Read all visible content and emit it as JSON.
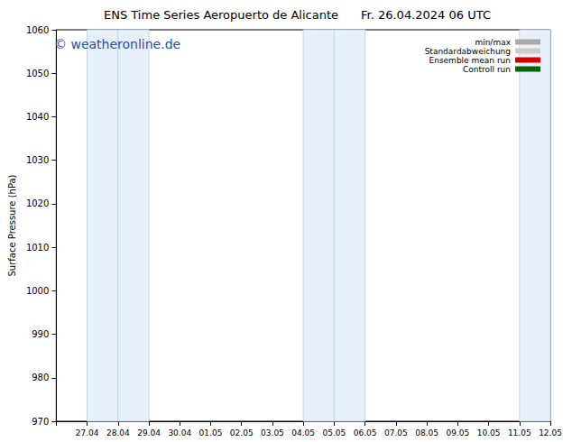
{
  "chart_data": {
    "type": "line",
    "title": "ENS Time Series Aeropuerto de Alicante",
    "subtitle": "Fr. 26.04.2024 06 UTC",
    "annotation": "© weatheronline.de",
    "y_label": "Surface Pressure (hPa)",
    "categories": [
      null,
      "27.04",
      "28.04",
      "29.04",
      "30.04",
      "01.05",
      "02.05",
      "03.05",
      "04.05",
      "05.05",
      "06.05",
      "07.05",
      "08.05",
      "09.05",
      "10.05",
      "11.05",
      "12.05"
    ],
    "series": [
      {
        "name": "min/max",
        "color": "#aaaaaa",
        "values": [
          null,
          null,
          null,
          null,
          null,
          null,
          null,
          null,
          null,
          null,
          null,
          null,
          null,
          null,
          null,
          null,
          null
        ]
      },
      {
        "name": "Standardabweichung",
        "color": "#cccccc",
        "values": [
          null,
          null,
          null,
          null,
          null,
          null,
          null,
          null,
          null,
          null,
          null,
          null,
          null,
          null,
          null,
          null,
          null
        ]
      },
      {
        "name": "Ensemble mean run",
        "color": "#cc0000",
        "values": [
          null,
          null,
          null,
          null,
          null,
          null,
          null,
          null,
          null,
          null,
          null,
          null,
          null,
          null,
          null,
          null,
          null
        ]
      },
      {
        "name": "Controll run",
        "color": "#006600",
        "values": [
          null,
          null,
          null,
          null,
          null,
          null,
          null,
          null,
          null,
          null,
          null,
          null,
          null,
          null,
          null,
          null,
          null
        ]
      }
    ],
    "shaded_ranges": [
      [
        "27.04",
        "28.04"
      ],
      [
        "28.04",
        "29.04"
      ],
      [
        "04.05",
        "05.05"
      ],
      [
        "05.05",
        "06.05"
      ],
      [
        "11.05",
        "12.05"
      ]
    ],
    "ylim": [
      970,
      1060
    ],
    "yticks": [
      970,
      980,
      990,
      1000,
      1010,
      1020,
      1030,
      1040,
      1050,
      1060
    ],
    "grid": false,
    "legend": "upper right"
  }
}
